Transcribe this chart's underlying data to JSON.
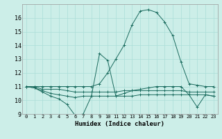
{
  "title": "",
  "xlabel": "Humidex (Indice chaleur)",
  "background_color": "#cceee8",
  "grid_color": "#aaddd8",
  "line_color": "#1a6b5e",
  "xlim": [
    -0.5,
    23.5
  ],
  "ylim": [
    9,
    17
  ],
  "yticks": [
    9,
    10,
    11,
    12,
    13,
    14,
    15,
    16
  ],
  "xticks": [
    0,
    1,
    2,
    3,
    4,
    5,
    6,
    7,
    8,
    9,
    10,
    11,
    12,
    13,
    14,
    15,
    16,
    17,
    18,
    19,
    20,
    21,
    22,
    23
  ],
  "series": [
    [
      11.0,
      10.9,
      10.6,
      10.3,
      10.1,
      9.7,
      8.9,
      9.0,
      10.3,
      13.4,
      12.9,
      10.3,
      10.5,
      10.7,
      10.8,
      10.9,
      11.0,
      11.0,
      11.0,
      11.0,
      10.4,
      9.5,
      10.4,
      10.3
    ],
    [
      11.0,
      11.0,
      10.8,
      10.8,
      10.8,
      10.7,
      10.6,
      10.6,
      10.6,
      10.6,
      10.6,
      10.6,
      10.7,
      10.7,
      10.7,
      10.7,
      10.7,
      10.7,
      10.7,
      10.7,
      10.6,
      10.6,
      10.6,
      10.6
    ],
    [
      11.0,
      10.9,
      10.7,
      10.5,
      10.4,
      10.3,
      10.2,
      10.3,
      10.3,
      10.3,
      10.3,
      10.3,
      10.3,
      10.3,
      10.4,
      10.4,
      10.4,
      10.4,
      10.4,
      10.4,
      10.4,
      10.4,
      10.4,
      10.3
    ],
    [
      11.0,
      11.0,
      11.0,
      11.0,
      11.0,
      11.0,
      11.0,
      11.0,
      11.0,
      11.2,
      12.0,
      13.0,
      14.0,
      15.5,
      16.5,
      16.6,
      16.4,
      15.7,
      14.7,
      12.8,
      11.2,
      11.1,
      11.0,
      11.0
    ]
  ]
}
